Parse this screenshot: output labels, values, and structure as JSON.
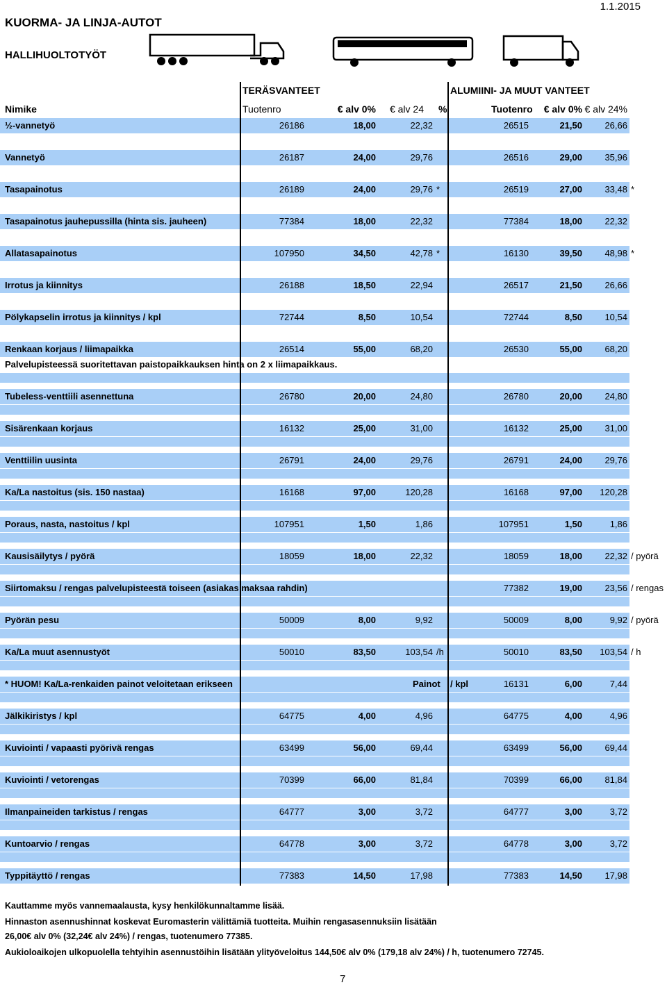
{
  "header": {
    "title": "KUORMA- JA LINJA-AUTOT",
    "subtitle": "HALLIHUOLTOTYÖT",
    "date": "1.1.2015"
  },
  "table": {
    "groups": [
      "TERÄSVANTEET",
      "ALUMIINI- JA MUUT VANTEET"
    ],
    "columns": [
      "Nimike",
      "Tuotenro",
      "€ alv 0%",
      "€ alv 24",
      "%",
      "Tuotenro",
      "€ alv 0%",
      "€ alv 24%"
    ],
    "rows": [
      {
        "name": "½-vannetyö",
        "steel": [
          "26186",
          "18,00",
          "22,32"
        ],
        "alu": [
          "26515",
          "21,50",
          "26,66"
        ]
      },
      {
        "name": "Vannetyö",
        "steel": [
          "26187",
          "24,00",
          "29,76"
        ],
        "alu": [
          "26516",
          "29,00",
          "35,96"
        ]
      },
      {
        "name": "Tasapainotus",
        "steel": [
          "26189",
          "24,00",
          "29,76"
        ],
        "steel_suffix": "*",
        "alu": [
          "26519",
          "27,00",
          "33,48"
        ],
        "alu_suffix": "*"
      },
      {
        "name": "Tasapainotus jauhepussilla (hinta sis. jauheen)",
        "steel": [
          "77384",
          "18,00",
          "22,32"
        ],
        "alu": [
          "77384",
          "18,00",
          "22,32"
        ]
      },
      {
        "name": "Allatasapainotus",
        "steel": [
          "107950",
          "34,50",
          "42,78"
        ],
        "steel_suffix": "*",
        "alu": [
          "16130",
          "39,50",
          "48,98"
        ],
        "alu_suffix": "*"
      },
      {
        "name": "Irrotus ja kiinnitys",
        "steel": [
          "26188",
          "18,50",
          "22,94"
        ],
        "alu": [
          "26517",
          "21,50",
          "26,66"
        ]
      },
      {
        "name": "Pölykapselin irrotus ja kiinnitys / kpl",
        "steel": [
          "72744",
          "8,50",
          "10,54"
        ],
        "alu": [
          "72744",
          "8,50",
          "10,54"
        ]
      },
      {
        "name": "Renkaan korjaus / liimapaikka",
        "steel": [
          "26514",
          "55,00",
          "68,20"
        ],
        "alu": [
          "26530",
          "55,00",
          "68,20"
        ]
      },
      {
        "name": "Tubeless-venttiili asennettuna",
        "steel": [
          "26780",
          "20,00",
          "24,80"
        ],
        "alu": [
          "26780",
          "20,00",
          "24,80"
        ]
      },
      {
        "name": "Sisärenkaan korjaus",
        "steel": [
          "16132",
          "25,00",
          "31,00"
        ],
        "alu": [
          "16132",
          "25,00",
          "31,00"
        ]
      },
      {
        "name": "Venttiilin uusinta",
        "steel": [
          "26791",
          "24,00",
          "29,76"
        ],
        "alu": [
          "26791",
          "24,00",
          "29,76"
        ]
      },
      {
        "name": "Ka/La nastoitus (sis. 150 nastaa)",
        "steel": [
          "16168",
          "97,00",
          "120,28"
        ],
        "alu": [
          "16168",
          "97,00",
          "120,28"
        ]
      },
      {
        "name": "Poraus, nasta, nastoitus / kpl",
        "steel": [
          "107951",
          "1,50",
          "1,86"
        ],
        "alu": [
          "107951",
          "1,50",
          "1,86"
        ]
      },
      {
        "name": "Kausisäilytys / pyörä",
        "steel": [
          "18059",
          "18,00",
          "22,32"
        ],
        "alu": [
          "18059",
          "18,00",
          "22,32"
        ],
        "alu_suffix": "/ pyörä"
      },
      {
        "name": "Siirtomaksu / rengas palvelupisteestä toiseen (asiakas maksaa rahdin)",
        "alu": [
          "77382",
          "19,00",
          "23,56"
        ],
        "alu_suffix": "/ rengas"
      },
      {
        "name": "Pyörän pesu",
        "steel": [
          "50009",
          "8,00",
          "9,92"
        ],
        "alu": [
          "50009",
          "8,00",
          "9,92"
        ],
        "alu_suffix": "/ pyörä"
      },
      {
        "name": "Ka/La muut asennustyöt",
        "steel": [
          "50010",
          "83,50",
          "103,54"
        ],
        "steel_suffix": "/h",
        "alu": [
          "50010",
          "83,50",
          "103,54"
        ],
        "alu_suffix": "/ h"
      },
      {
        "name": "* HUOM! Ka/La-renkaiden painot veloitetaan erikseen",
        "label": "Painot",
        "label_unit": "/ kpl",
        "alu": [
          "16131",
          "6,00",
          "7,44"
        ]
      },
      {
        "name": "Jälkikiristys / kpl",
        "steel": [
          "64775",
          "4,00",
          "4,96"
        ],
        "alu": [
          "64775",
          "4,00",
          "4,96"
        ]
      },
      {
        "name": "Kuviointi / vapaasti pyörivä rengas",
        "steel": [
          "63499",
          "56,00",
          "69,44"
        ],
        "alu": [
          "63499",
          "56,00",
          "69,44"
        ]
      },
      {
        "name": "Kuviointi / vetorengas",
        "steel": [
          "70399",
          "66,00",
          "81,84"
        ],
        "alu": [
          "70399",
          "66,00",
          "81,84"
        ]
      },
      {
        "name": "Ilmanpaineiden tarkistus / rengas",
        "steel": [
          "64777",
          "3,00",
          "3,72"
        ],
        "alu": [
          "64777",
          "3,00",
          "3,72"
        ]
      },
      {
        "name": "Kuntoarvio / rengas",
        "steel": [
          "64778",
          "3,00",
          "3,72"
        ],
        "alu": [
          "64778",
          "3,00",
          "3,72"
        ]
      },
      {
        "name": "Typpitäyttö / rengas",
        "steel": [
          "77383",
          "14,50",
          "17,98"
        ],
        "alu": [
          "77383",
          "14,50",
          "17,98"
        ]
      }
    ],
    "note": "Palvelupisteessä suoritettavan paistopaikkauksen hinta on 2 x liimapaikkaus."
  },
  "footer": {
    "lines": [
      "Kauttamme myös vannemaalausta, kysy henkilökunnaltamme lisää.",
      "Hinnaston asennushinnat koskevat Euromasterin välittämiä tuotteita.  Muihin rengasasennuksiin lisätään",
      "26,00€ alv 0% (32,24€ alv 24%) / rengas, tuotenumero 77385.",
      "Aukioloaikojen ulkopuolella tehtyihin asennustöihin lisätään ylityöveloitus 144,50€ alv 0% (179,18 alv 24%) / h, tuotenumero 72745."
    ]
  },
  "page_number": "7"
}
